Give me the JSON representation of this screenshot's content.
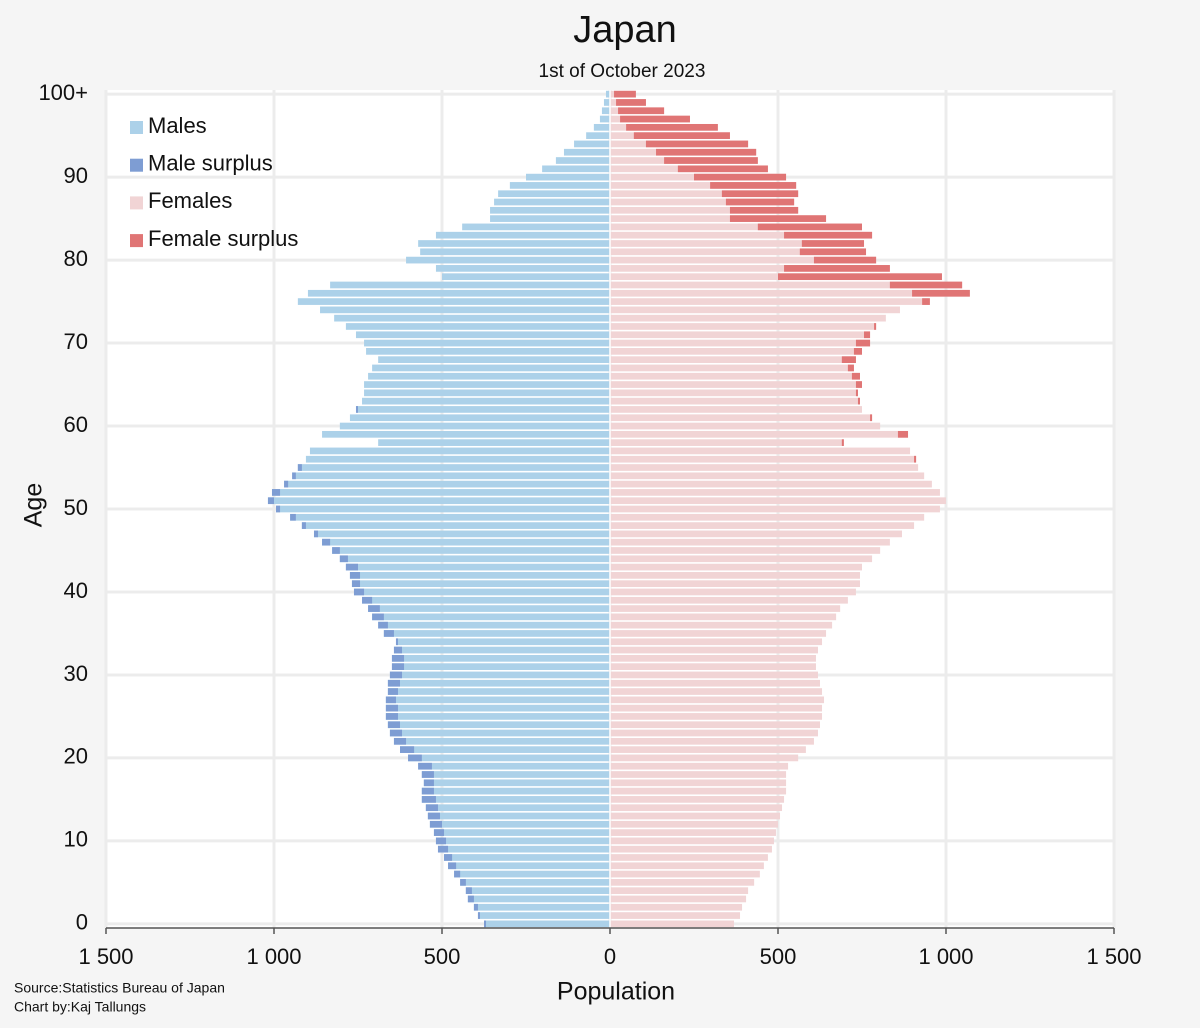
{
  "chart_data": {
    "type": "pyramid",
    "title": "Japan",
    "subtitle": "1st of October 2023",
    "x_label": "Population",
    "y_label": "Age",
    "source": "Source:Statistics Bureau of Japan",
    "credit": "Chart by:Kaj Tallungs",
    "y": [
      0,
      1,
      2,
      3,
      4,
      5,
      6,
      7,
      8,
      9,
      10,
      11,
      12,
      13,
      14,
      15,
      16,
      17,
      18,
      19,
      20,
      21,
      22,
      23,
      24,
      25,
      26,
      27,
      28,
      29,
      30,
      31,
      32,
      33,
      34,
      35,
      36,
      37,
      38,
      39,
      40,
      41,
      42,
      43,
      44,
      45,
      46,
      47,
      48,
      49,
      50,
      51,
      52,
      53,
      54,
      55,
      56,
      57,
      58,
      59,
      60,
      61,
      62,
      63,
      64,
      65,
      66,
      67,
      68,
      69,
      70,
      71,
      72,
      73,
      74,
      75,
      76,
      77,
      78,
      79,
      80,
      81,
      82,
      83,
      84,
      85,
      86,
      87,
      88,
      89,
      90,
      91,
      92,
      93,
      94,
      95,
      96,
      97,
      98,
      99,
      100
    ],
    "series": [
      {
        "name": "Males",
        "color": "#acd1e9",
        "surplus_name": "Male surplus",
        "surplus_color": "#7e9dd3",
        "side": "left",
        "values": [
          375,
          393,
          405,
          423,
          429,
          446,
          464,
          482,
          494,
          512,
          518,
          524,
          536,
          542,
          548,
          560,
          560,
          554,
          560,
          571,
          601,
          625,
          643,
          655,
          661,
          667,
          667,
          667,
          661,
          661,
          655,
          649,
          649,
          643,
          637,
          673,
          690,
          708,
          720,
          738,
          762,
          768,
          774,
          786,
          804,
          827,
          857,
          881,
          917,
          952,
          994,
          1018,
          1006,
          970,
          946,
          929,
          905,
          893,
          690,
          857,
          804,
          774,
          756,
          738,
          732,
          732,
          720,
          708,
          690,
          726,
          732,
          756,
          786,
          821,
          863,
          929,
          899,
          833,
          500,
          518,
          607,
          565,
          571,
          518,
          440,
          357,
          357,
          345,
          333,
          298,
          250,
          202,
          161,
          137,
          107,
          71,
          48,
          30,
          24,
          18,
          12
        ]
      },
      {
        "name": "Females",
        "color": "#f1d4d5",
        "surplus_name": "Female surplus",
        "surplus_color": "#e07575",
        "side": "right",
        "values": [
          369,
          387,
          393,
          405,
          411,
          429,
          446,
          458,
          470,
          482,
          488,
          494,
          500,
          506,
          512,
          518,
          524,
          524,
          524,
          530,
          560,
          583,
          607,
          619,
          625,
          631,
          631,
          637,
          631,
          625,
          619,
          613,
          613,
          619,
          631,
          643,
          661,
          673,
          685,
          708,
          732,
          744,
          744,
          750,
          780,
          804,
          833,
          869,
          905,
          935,
          982,
          1000,
          982,
          958,
          935,
          917,
          911,
          893,
          696,
          887,
          804,
          780,
          750,
          744,
          738,
          750,
          744,
          726,
          732,
          750,
          774,
          774,
          792,
          821,
          863,
          952,
          1071,
          1048,
          988,
          833,
          792,
          762,
          756,
          780,
          750,
          643,
          560,
          548,
          560,
          554,
          524,
          470,
          440,
          435,
          411,
          357,
          321,
          238,
          161,
          107,
          77
        ]
      }
    ],
    "xlim": [
      -1500,
      1500
    ],
    "xticks": [
      {
        "value": -1500,
        "label": "1 500"
      },
      {
        "value": -1000,
        "label": "1 000"
      },
      {
        "value": -500,
        "label": "500"
      },
      0,
      500,
      {
        "value": 1000,
        "label": "1 000"
      },
      {
        "value": 1500,
        "label": "1 500"
      }
    ],
    "ylim": [
      -0.5,
      100.5
    ],
    "yticks": [
      0,
      10,
      20,
      30,
      40,
      50,
      60,
      70,
      80,
      90,
      {
        "value": 100,
        "label": "100+"
      }
    ],
    "grid": true,
    "legend": "top-left"
  }
}
